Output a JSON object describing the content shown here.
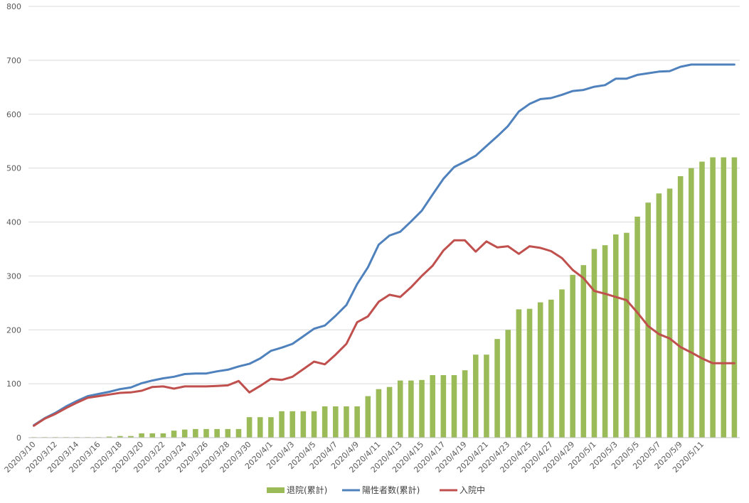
{
  "chart_data": {
    "type": "bar",
    "title": "",
    "xlabel": "",
    "ylabel": "",
    "ylim": [
      0,
      800
    ],
    "yticks": [
      0,
      100,
      200,
      300,
      400,
      500,
      600,
      700,
      800
    ],
    "grid": true,
    "legend_position": "bottom",
    "categories": [
      "2020/3/10",
      "2020/3/11",
      "2020/3/12",
      "2020/3/13",
      "2020/3/14",
      "2020/3/15",
      "2020/3/16",
      "2020/3/17",
      "2020/3/18",
      "2020/3/19",
      "2020/3/20",
      "2020/3/21",
      "2020/3/22",
      "2020/3/23",
      "2020/3/24",
      "2020/3/25",
      "2020/3/26",
      "2020/3/27",
      "2020/3/28",
      "2020/3/29",
      "2020/3/30",
      "2020/3/31",
      "2020/4/1",
      "2020/4/2",
      "2020/4/3",
      "2020/4/4",
      "2020/4/5",
      "2020/4/6",
      "2020/4/7",
      "2020/4/8",
      "2020/4/9",
      "2020/4/10",
      "2020/4/11",
      "2020/4/12",
      "2020/4/13",
      "2020/4/14",
      "2020/4/15",
      "2020/4/16",
      "2020/4/17",
      "2020/4/18",
      "2020/4/19",
      "2020/4/20",
      "2020/4/21",
      "2020/4/22",
      "2020/4/23",
      "2020/4/24",
      "2020/4/25",
      "2020/4/26",
      "2020/4/27",
      "2020/4/28",
      "2020/4/29",
      "2020/4/30",
      "2020/5/1",
      "2020/5/2",
      "2020/5/3",
      "2020/5/4",
      "2020/5/5",
      "2020/5/6",
      "2020/5/7",
      "2020/5/8",
      "2020/5/9",
      "2020/5/10",
      "2020/5/11",
      "2020/5/12",
      "2020/5/13",
      "2020/5/14"
    ],
    "tick_labels": [
      "2020/3/10",
      "",
      "2020/3/12",
      "",
      "2020/3/14",
      "",
      "2020/3/16",
      "",
      "2020/3/18",
      "",
      "2020/3/20",
      "",
      "2020/3/22",
      "",
      "2020/3/24",
      "",
      "2020/3/26",
      "",
      "2020/3/28",
      "",
      "2020/3/30",
      "",
      "2020/4/1",
      "",
      "2020/4/3",
      "",
      "2020/4/5",
      "",
      "2020/4/7",
      "",
      "2020/4/9",
      "",
      "2020/4/11",
      "",
      "2020/4/13",
      "",
      "2020/4/15",
      "",
      "2020/4/17",
      "",
      "2020/4/19",
      "",
      "2020/4/21",
      "",
      "2020/4/23",
      "",
      "2020/4/25",
      "",
      "2020/4/27",
      "",
      "2020/4/29",
      "",
      "2020/5/1",
      "",
      "2020/5/3",
      "",
      "2020/5/5",
      "",
      "2020/5/7",
      "",
      "2020/5/9",
      "",
      "2020/5/11",
      "",
      "",
      ""
    ],
    "series": [
      {
        "name": "退院(累計)",
        "type": "bar",
        "color": "#9bbb59",
        "values": [
          1,
          1,
          1,
          1,
          1,
          1,
          1,
          2,
          3,
          3,
          8,
          8,
          8,
          13,
          15,
          16,
          16,
          16,
          16,
          16,
          38,
          38,
          38,
          49,
          49,
          49,
          49,
          58,
          58,
          58,
          58,
          77,
          90,
          94,
          106,
          106,
          107,
          116,
          116,
          116,
          125,
          154,
          154,
          183,
          200,
          238,
          239,
          251,
          256,
          275,
          302,
          320,
          350,
          357,
          377,
          380,
          410,
          436,
          453,
          462,
          485,
          500,
          512,
          520,
          520,
          520
        ]
      },
      {
        "name": "陽性者数(累計)",
        "type": "line",
        "color": "#4f81bd",
        "values": [
          23,
          36,
          46,
          58,
          68,
          77,
          81,
          85,
          90,
          93,
          101,
          106,
          110,
          113,
          118,
          119,
          119,
          123,
          126,
          132,
          137,
          147,
          161,
          167,
          174,
          188,
          202,
          208,
          226,
          246,
          285,
          316,
          358,
          375,
          382,
          401,
          421,
          451,
          480,
          502,
          512,
          523,
          541,
          559,
          578,
          605,
          619,
          628,
          630,
          636,
          643,
          645,
          651,
          654,
          666,
          666,
          673,
          676,
          679,
          680,
          688,
          692,
          692,
          692,
          692,
          692
        ]
      },
      {
        "name": "入院中",
        "type": "line",
        "color": "#c0504d",
        "values": [
          22,
          35,
          44,
          55,
          65,
          74,
          77,
          80,
          83,
          84,
          87,
          94,
          95,
          91,
          95,
          95,
          95,
          96,
          97,
          105,
          84,
          96,
          109,
          107,
          113,
          127,
          141,
          136,
          154,
          174,
          214,
          225,
          252,
          265,
          261,
          279,
          300,
          319,
          347,
          366,
          366,
          345,
          364,
          353,
          355,
          341,
          355,
          352,
          346,
          333,
          311,
          296,
          272,
          267,
          261,
          255,
          232,
          207,
          192,
          184,
          168,
          158,
          147,
          138,
          138,
          138
        ]
      }
    ]
  },
  "legend": {
    "discharged": "退院(累計)",
    "positive": "陽性者数(累計)",
    "hospitalized": "入院中"
  }
}
